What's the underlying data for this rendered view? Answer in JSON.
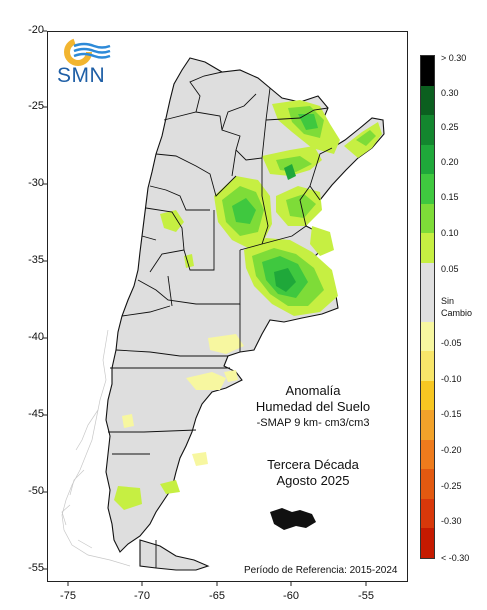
{
  "logo": {
    "text": "SMN",
    "sun_color": "#f2b530",
    "wave_color": "#2d8ad8"
  },
  "title": {
    "line1": "Anomalía",
    "line2": "Humedad del Suelo",
    "line3": "-SMAP 9 km- cm3/cm3",
    "period1": "Tercera Década",
    "period2": "Agosto 2025"
  },
  "reference": "Período de Referencia: 2015-2024",
  "axes": {
    "y_ticks": [
      "-20",
      "-25",
      "-30",
      "-35",
      "-40",
      "-45",
      "-50",
      "-55"
    ],
    "x_ticks": [
      "-75",
      "-70",
      "-65",
      "-60",
      "-55"
    ]
  },
  "legend": {
    "labels": [
      "> 0.30",
      "0.30",
      "0.25",
      "0.20",
      "0.15",
      "0.10",
      "0.05",
      "Sin",
      "Cambio",
      "-0.05",
      "-0.10",
      "-0.15",
      "-0.20",
      "-0.25",
      "-0.30",
      "< -0.30"
    ],
    "colors": [
      "#000000",
      "#0b5f1f",
      "#13862e",
      "#1fa83a",
      "#3fc83f",
      "#7edc38",
      "#c6ef42",
      "#e0e0e0",
      "#f7f7a0",
      "#f8e66a",
      "#f7c722",
      "#f2a22a",
      "#ee7b1c",
      "#e25910",
      "#d8380a",
      "#c51a00"
    ]
  },
  "map_colors": {
    "land": "#dedede",
    "border": "#111111",
    "green_light": "#c6ef42",
    "green": "#7edc38",
    "green_mid": "#3fc83f",
    "green_dark": "#1fa83a",
    "yellow": "#f7f7a0"
  }
}
